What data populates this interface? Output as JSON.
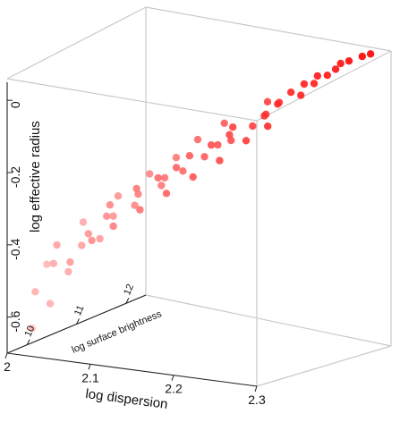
{
  "chart_data": {
    "type": "scatter",
    "title": "",
    "xlabel": "log dispersion",
    "ylabel": "log effective radius",
    "zlabel": "log surface brightness",
    "xlim": [
      2.0,
      2.3
    ],
    "ylim": [
      -0.7,
      0.05
    ],
    "zlim": [
      9.6,
      12.4
    ],
    "x_ticks": [
      "2",
      "2.1",
      "2.2",
      "2.3"
    ],
    "y_ticks": [
      "0",
      "-0.2",
      "-0.4",
      "-0.6"
    ],
    "z_ticks": [
      "10",
      "11",
      "12"
    ],
    "color_low": "#ffb6b6",
    "color_high": "#ff0000",
    "grid": false,
    "points": [
      {
        "x": 2.0,
        "z": 10.1,
        "y": -0.66
      },
      {
        "x": 2.01,
        "z": 10.3,
        "y": -0.6
      },
      {
        "x": 2.01,
        "z": 10.0,
        "y": -0.55
      },
      {
        "x": 2.02,
        "z": 10.5,
        "y": -0.52
      },
      {
        "x": 2.02,
        "z": 10.2,
        "y": -0.48
      },
      {
        "x": 2.03,
        "z": 10.6,
        "y": -0.45
      },
      {
        "x": 2.0,
        "z": 10.4,
        "y": -0.5
      },
      {
        "x": 2.03,
        "z": 10.1,
        "y": -0.42
      },
      {
        "x": 2.04,
        "z": 10.8,
        "y": -0.44
      },
      {
        "x": 2.05,
        "z": 10.4,
        "y": -0.4
      },
      {
        "x": 2.05,
        "z": 10.9,
        "y": -0.38
      },
      {
        "x": 2.06,
        "z": 10.6,
        "y": -0.36
      },
      {
        "x": 2.07,
        "z": 11.0,
        "y": -0.35
      },
      {
        "x": 2.07,
        "z": 10.5,
        "y": -0.32
      },
      {
        "x": 2.08,
        "z": 10.9,
        "y": -0.31
      },
      {
        "x": 2.09,
        "z": 11.2,
        "y": -0.3
      },
      {
        "x": 2.09,
        "z": 10.7,
        "y": -0.28
      },
      {
        "x": 2.1,
        "z": 11.1,
        "y": -0.27
      },
      {
        "x": 2.11,
        "z": 10.8,
        "y": -0.25
      },
      {
        "x": 2.11,
        "z": 11.3,
        "y": -0.26
      },
      {
        "x": 2.12,
        "z": 11.0,
        "y": -0.23
      },
      {
        "x": 2.13,
        "z": 11.4,
        "y": -0.22
      },
      {
        "x": 2.13,
        "z": 11.1,
        "y": -0.2
      },
      {
        "x": 2.14,
        "z": 11.5,
        "y": -0.19
      },
      {
        "x": 2.15,
        "z": 11.2,
        "y": -0.17
      },
      {
        "x": 2.15,
        "z": 11.6,
        "y": -0.18
      },
      {
        "x": 2.16,
        "z": 11.4,
        "y": -0.15
      },
      {
        "x": 2.17,
        "z": 11.7,
        "y": -0.14
      },
      {
        "x": 2.17,
        "z": 11.3,
        "y": -0.12
      },
      {
        "x": 2.18,
        "z": 11.8,
        "y": -0.11
      },
      {
        "x": 2.19,
        "z": 11.6,
        "y": -0.1
      },
      {
        "x": 2.19,
        "z": 11.9,
        "y": -0.08
      },
      {
        "x": 2.2,
        "z": 11.7,
        "y": -0.07
      },
      {
        "x": 2.21,
        "z": 12.0,
        "y": -0.06
      },
      {
        "x": 2.21,
        "z": 11.8,
        "y": -0.04
      },
      {
        "x": 2.22,
        "z": 12.1,
        "y": -0.03
      },
      {
        "x": 2.22,
        "z": 11.9,
        "y": -0.02
      },
      {
        "x": 2.23,
        "z": 12.2,
        "y": -0.01
      },
      {
        "x": 2.23,
        "z": 12.0,
        "y": 0.0
      },
      {
        "x": 2.24,
        "z": 12.2,
        "y": 0.01
      },
      {
        "x": 2.24,
        "z": 12.3,
        "y": 0.02
      },
      {
        "x": 2.25,
        "z": 12.3,
        "y": 0.03
      },
      {
        "x": 2.26,
        "z": 12.4,
        "y": 0.04
      },
      {
        "x": 2.27,
        "z": 12.4,
        "y": 0.05
      },
      {
        "x": 2.06,
        "z": 10.3,
        "y": -0.41
      },
      {
        "x": 2.08,
        "z": 10.4,
        "y": -0.37
      },
      {
        "x": 2.1,
        "z": 10.6,
        "y": -0.33
      },
      {
        "x": 2.12,
        "z": 10.8,
        "y": -0.29
      },
      {
        "x": 2.14,
        "z": 11.0,
        "y": -0.25
      },
      {
        "x": 2.16,
        "z": 11.2,
        "y": -0.21
      },
      {
        "x": 2.18,
        "z": 11.4,
        "y": -0.16
      },
      {
        "x": 2.2,
        "z": 11.5,
        "y": -0.12
      },
      {
        "x": 2.04,
        "z": 10.2,
        "y": -0.47
      },
      {
        "x": 2.05,
        "z": 11.0,
        "y": -0.33
      },
      {
        "x": 2.09,
        "z": 11.5,
        "y": -0.24
      },
      {
        "x": 2.13,
        "z": 11.8,
        "y": -0.15
      },
      {
        "x": 2.17,
        "z": 12.0,
        "y": -0.09
      },
      {
        "x": 2.02,
        "z": 10.8,
        "y": -0.4
      },
      {
        "x": 2.07,
        "z": 11.3,
        "y": -0.28
      },
      {
        "x": 2.11,
        "z": 11.6,
        "y": -0.19
      }
    ]
  }
}
